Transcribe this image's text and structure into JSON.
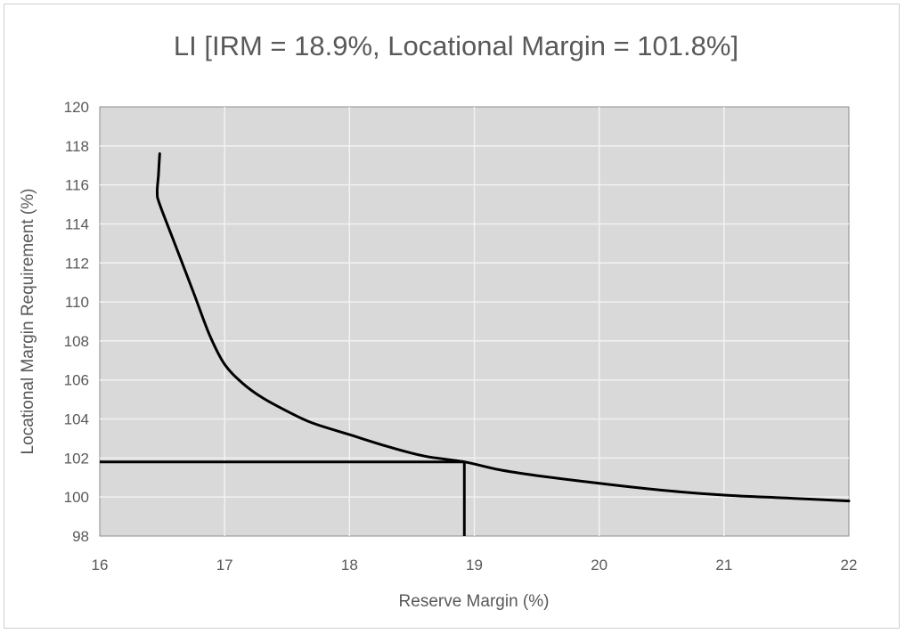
{
  "chart_data": {
    "type": "line",
    "title": "LI [IRM = 18.9%, Locational Margin = 101.8%]",
    "xlabel": "Reserve Margin (%)",
    "ylabel": "Locational Margin Requirement (%)",
    "xlim": [
      16,
      22
    ],
    "ylim": [
      98,
      120
    ],
    "x_ticks": [
      16,
      17,
      18,
      19,
      20,
      21,
      22
    ],
    "y_ticks": [
      98,
      100,
      102,
      104,
      106,
      108,
      110,
      112,
      114,
      116,
      118,
      120
    ],
    "grid": true,
    "legend": "none",
    "series": [
      {
        "points": [
          [
            16.48,
            117.6
          ],
          [
            16.47,
            116.5
          ],
          [
            16.46,
            115.6
          ],
          [
            16.48,
            115.0
          ],
          [
            16.6,
            113.0
          ],
          [
            16.75,
            110.5
          ],
          [
            16.88,
            108.3
          ],
          [
            17.0,
            106.8
          ],
          [
            17.15,
            105.8
          ],
          [
            17.3,
            105.1
          ],
          [
            17.5,
            104.4
          ],
          [
            17.7,
            103.8
          ],
          [
            18.0,
            103.2
          ],
          [
            18.3,
            102.6
          ],
          [
            18.6,
            102.1
          ],
          [
            18.92,
            101.8
          ],
          [
            19.2,
            101.4
          ],
          [
            19.5,
            101.1
          ],
          [
            20.0,
            100.7
          ],
          [
            20.5,
            100.35
          ],
          [
            21.0,
            100.1
          ],
          [
            21.5,
            99.95
          ],
          [
            22.0,
            99.8
          ]
        ],
        "color": "#000000"
      }
    ],
    "reference_lines": [
      {
        "kind": "horizontal",
        "y": 101.8,
        "x_from": 16,
        "x_to": 18.92
      },
      {
        "kind": "vertical",
        "x": 18.92,
        "y_from": 98,
        "y_to": 101.8
      }
    ],
    "colors": {
      "plot_background": "#d9d9d9",
      "grid": "#f2f2f2",
      "text": "#595959",
      "line": "#000000"
    }
  }
}
